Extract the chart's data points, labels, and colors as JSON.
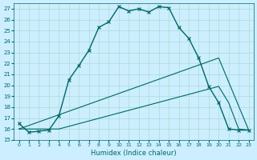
{
  "xlabel": "Humidex (Indice chaleur)",
  "bg_color": "#cceeff",
  "grid_color": "#aaddcc",
  "line_color": "#006666",
  "xlim": [
    -0.5,
    23.5
  ],
  "ylim": [
    15,
    27.5
  ],
  "yticks": [
    15,
    16,
    17,
    18,
    19,
    20,
    21,
    22,
    23,
    24,
    25,
    26,
    27
  ],
  "xticks": [
    0,
    1,
    2,
    3,
    4,
    5,
    6,
    7,
    8,
    9,
    10,
    11,
    12,
    13,
    14,
    15,
    16,
    17,
    18,
    19,
    20,
    21,
    22,
    23
  ],
  "curve1_x": [
    0,
    1,
    2,
    3,
    4,
    5,
    6,
    7,
    8,
    9,
    10,
    11,
    12,
    13,
    14,
    15,
    16,
    17,
    18,
    19,
    20,
    21,
    22,
    23
  ],
  "curve1_y": [
    16.5,
    15.7,
    15.8,
    15.9,
    17.2,
    20.5,
    21.8,
    23.2,
    25.3,
    25.8,
    27.2,
    26.8,
    27.0,
    26.7,
    27.2,
    27.1,
    25.3,
    24.3,
    22.5,
    19.9,
    18.4,
    16.0,
    15.9,
    15.9
  ],
  "curve2_x": [
    0,
    4,
    20,
    21,
    22,
    23
  ],
  "curve2_y": [
    16.0,
    16.0,
    19.9,
    18.4,
    16.0,
    15.9
  ],
  "curve3_x": [
    0,
    20,
    23
  ],
  "curve3_y": [
    16.0,
    22.5,
    15.9
  ]
}
